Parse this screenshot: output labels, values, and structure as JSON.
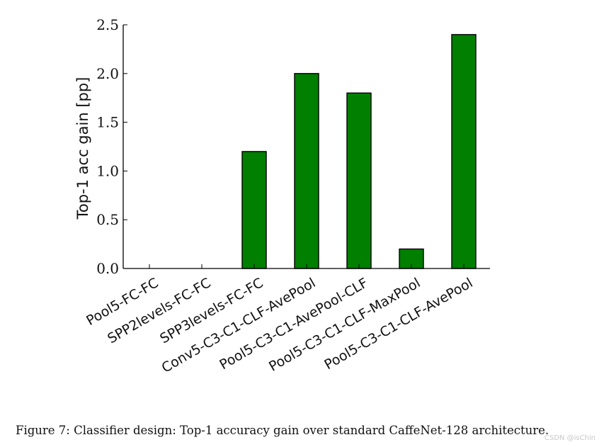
{
  "chart_data": {
    "type": "bar",
    "categories": [
      "Pool5-FC-FC",
      "SPP2levels-FC-FC",
      "SPP3levels-FC-FC",
      "Conv5-C3-C1-CLF-AvePool",
      "Pool5-C3-C1-AvePool-CLF",
      "Pool5-C3-C1-CLF-MaxPool",
      "Pool5-C3-C1-CLF-AvePool"
    ],
    "values": [
      0,
      0,
      1.2,
      2.0,
      1.8,
      0.2,
      2.4
    ],
    "ylabel": "Top-1 acc gain [pp]",
    "xlabel": "",
    "ylim": [
      0,
      2.5
    ],
    "yticks": [
      "0.0",
      "0.5",
      "1.0",
      "1.5",
      "2.0",
      "2.5"
    ],
    "bar_color": "#007f00",
    "grid": false,
    "legend": "none"
  },
  "caption": "Figure 7: Classifier design: Top-1 accuracy gain over standard CaffeNet-128 architecture.",
  "watermark": "CSDN @isChin"
}
